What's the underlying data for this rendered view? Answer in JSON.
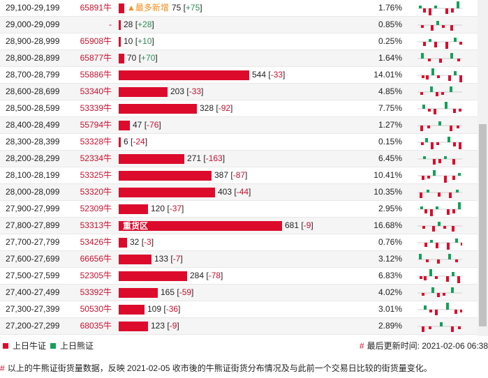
{
  "colors": {
    "bull": "#dc0b2c",
    "bear": "#14a05a",
    "accent": "#f08c1e"
  },
  "rows": [
    {
      "range": "29,100-29,199",
      "code": "65891牛",
      "tag": "▲最多新增",
      "qty": "75",
      "change": "+75",
      "pct": "1.76%",
      "bar": 0.035
    },
    {
      "range": "29,000-29,099",
      "code": "-",
      "qty": "28",
      "change": "+28",
      "pct": "0.85%",
      "bar": 0.014
    },
    {
      "range": "28,900-28,999",
      "code": "65908牛",
      "qty": "10",
      "change": "+10",
      "pct": "0.25%",
      "bar": 0.006
    },
    {
      "range": "28,800-28,899",
      "code": "65877牛",
      "qty": "70",
      "change": "+70",
      "pct": "1.64%",
      "bar": 0.033
    },
    {
      "range": "28,700-28,799",
      "code": "55886牛",
      "qty": "544",
      "change": "-33",
      "pct": "14.01%",
      "bar": 0.8
    },
    {
      "range": "28,600-28,699",
      "code": "53340牛",
      "qty": "203",
      "change": "-33",
      "pct": "4.85%",
      "bar": 0.3
    },
    {
      "range": "28,500-28,599",
      "code": "53339牛",
      "qty": "328",
      "change": "-92",
      "pct": "7.75%",
      "bar": 0.48
    },
    {
      "range": "28,400-28,499",
      "code": "55794牛",
      "qty": "47",
      "change": "-76",
      "pct": "1.27%",
      "bar": 0.07
    },
    {
      "range": "28,300-28,399",
      "code": "53328牛",
      "qty": "6",
      "change": "-24",
      "pct": "0.15%",
      "bar": 0.008
    },
    {
      "range": "28,200-28,299",
      "code": "52334牛",
      "qty": "271",
      "change": "-163",
      "pct": "6.45%",
      "bar": 0.4
    },
    {
      "range": "28,100-28,199",
      "code": "53325牛",
      "qty": "387",
      "change": "-87",
      "pct": "10.41%",
      "bar": 0.57
    },
    {
      "range": "28,000-28,099",
      "code": "53320牛",
      "qty": "403",
      "change": "-44",
      "pct": "10.35%",
      "bar": 0.59
    },
    {
      "range": "27,900-27,999",
      "code": "52309牛",
      "qty": "120",
      "change": "-37",
      "pct": "2.95%",
      "bar": 0.18
    },
    {
      "range": "27,800-27,899",
      "code": "53313牛",
      "heavy": "重货区",
      "qty": "681",
      "change": "-9",
      "pct": "16.68%",
      "bar": 1.0
    },
    {
      "range": "27,700-27,799",
      "code": "53426牛",
      "qty": "32",
      "change": "-3",
      "pct": "0.76%",
      "bar": 0.05
    },
    {
      "range": "27,600-27,699",
      "code": "66656牛",
      "qty": "133",
      "change": "-7",
      "pct": "3.12%",
      "bar": 0.2
    },
    {
      "range": "27,500-27,599",
      "code": "52305牛",
      "qty": "284",
      "change": "-78",
      "pct": "6.83%",
      "bar": 0.42
    },
    {
      "range": "27,400-27,499",
      "code": "53392牛",
      "qty": "165",
      "change": "-59",
      "pct": "4.02%",
      "bar": 0.24
    },
    {
      "range": "27,300-27,399",
      "code": "50530牛",
      "qty": "109",
      "change": "-36",
      "pct": "3.01%",
      "bar": 0.16
    },
    {
      "range": "27,200-27,299",
      "code": "68035牛",
      "qty": "123",
      "change": "-9",
      "pct": "2.89%",
      "bar": 0.18
    }
  ],
  "legend": {
    "bull": "上日牛证",
    "bear": "上日熊证"
  },
  "updated": {
    "label": "最后更新时间:",
    "value": "2021-02-06 06:38"
  },
  "note": "以上的牛熊证街货量数据，反映 2021-02-05 收市後的牛熊证街货分布情况及与此前一个交易日比较的街货量变化。"
}
